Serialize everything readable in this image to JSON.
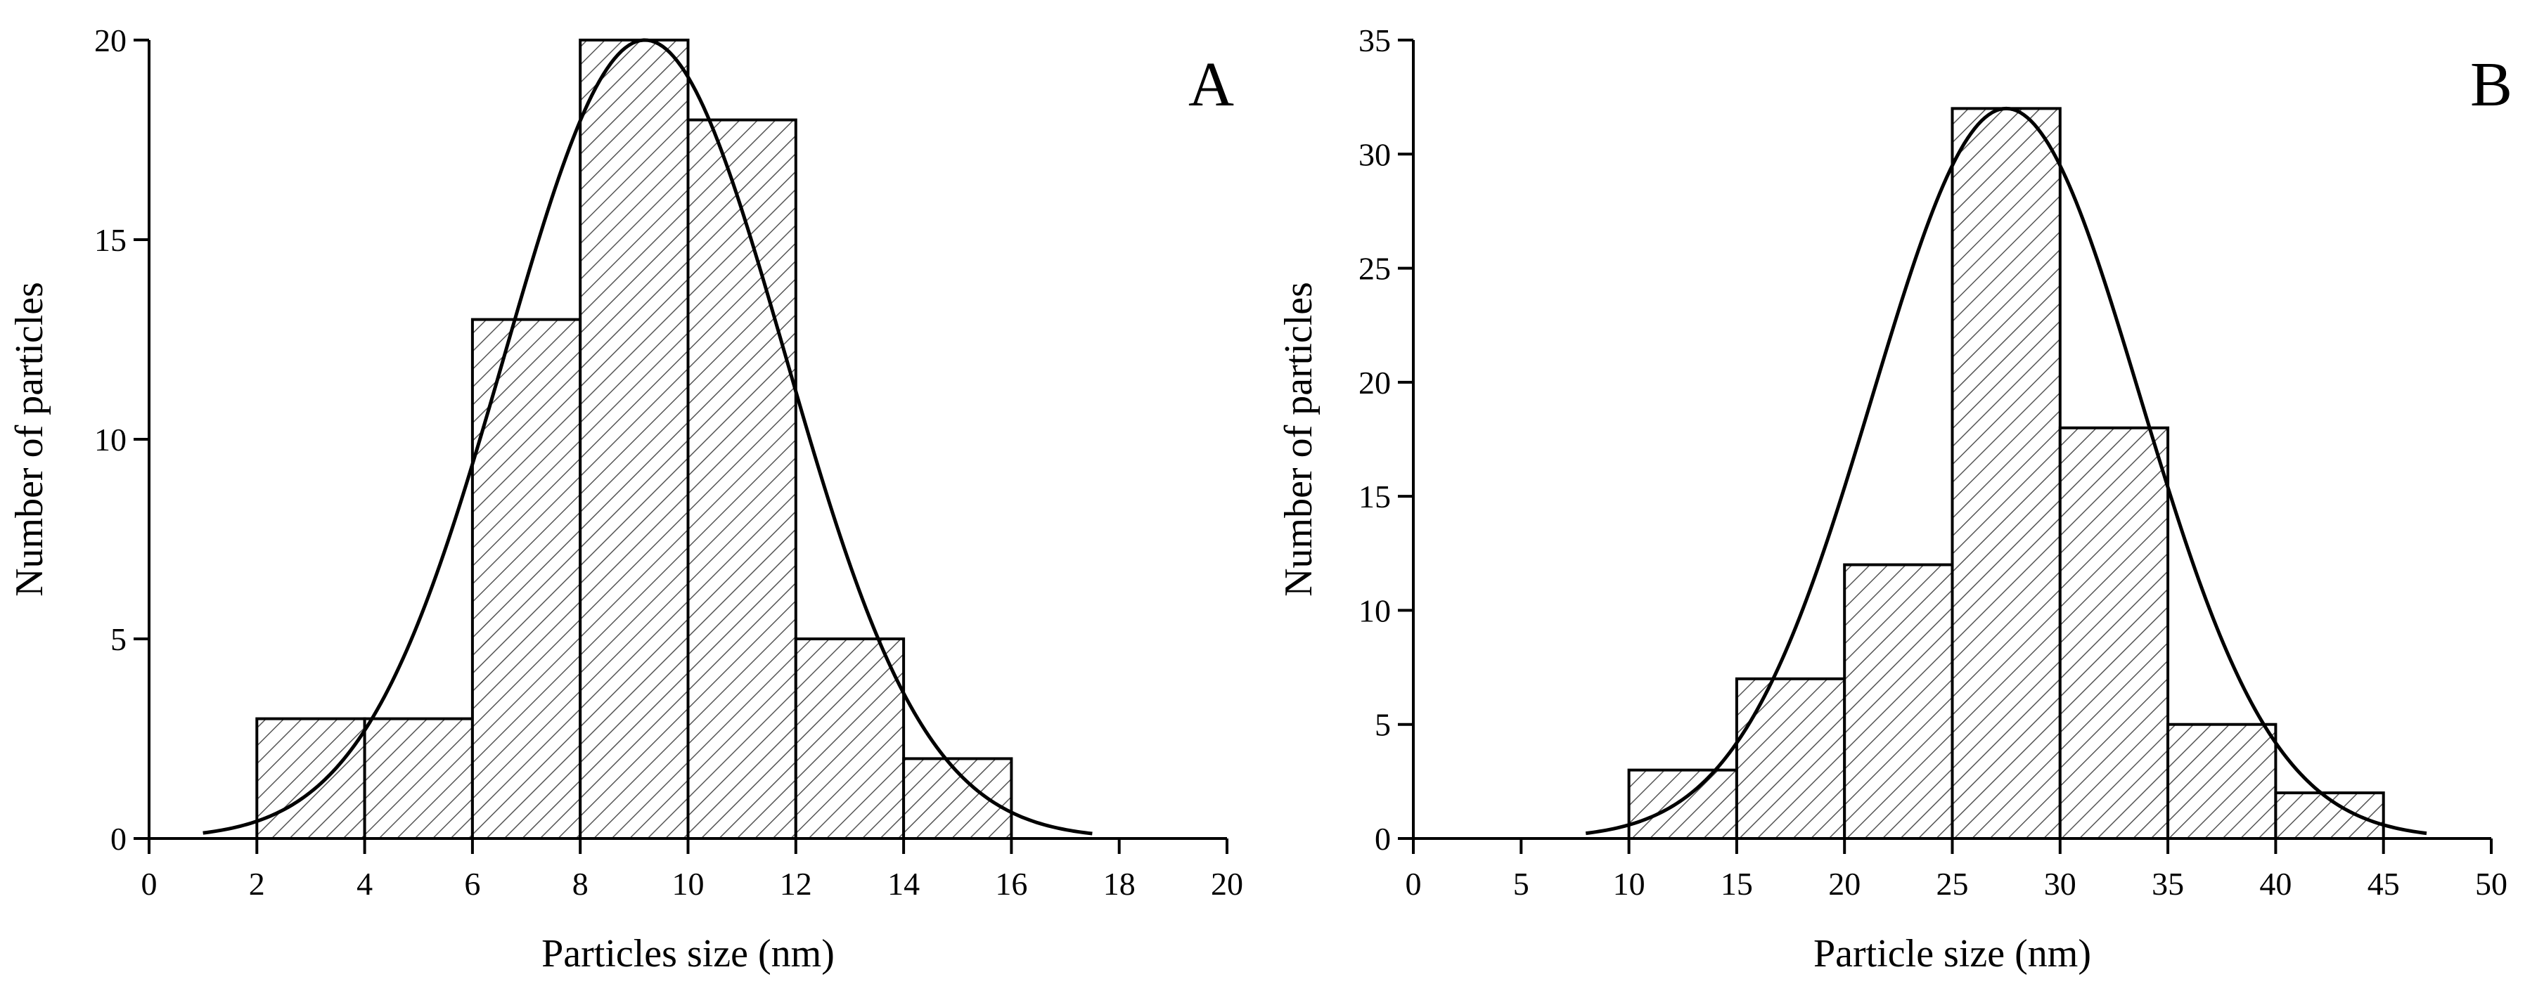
{
  "chart_data": [
    {
      "type": "bar",
      "panel_label": "A",
      "xlabel": "Particles size (nm)",
      "ylabel": "Number of particles",
      "xlim": [
        0,
        20
      ],
      "ylim": [
        0,
        20
      ],
      "xticks": [
        "0",
        "2",
        "4",
        "6",
        "8",
        "10",
        "12",
        "14",
        "16",
        "18",
        "20"
      ],
      "yticks": [
        "0",
        "5",
        "10",
        "15",
        "20"
      ],
      "bin_width": 2,
      "bin_starts": [
        2,
        4,
        6,
        8,
        10,
        12,
        14
      ],
      "values": [
        3,
        3,
        13,
        20,
        18,
        5,
        2
      ],
      "fit": {
        "type": "gaussian",
        "mean": 9.2,
        "sigma": 2.6,
        "peak": 20,
        "x_range": [
          1,
          17.5
        ]
      },
      "colors": {
        "bar_fill": "#ffffff",
        "hatch": "#555555",
        "line": "#000000"
      }
    },
    {
      "type": "bar",
      "panel_label": "B",
      "xlabel": "Particle size (nm)",
      "ylabel": "Number of particles",
      "xlim": [
        0,
        50
      ],
      "ylim": [
        0,
        35
      ],
      "xticks": [
        "0",
        "5",
        "10",
        "15",
        "20",
        "25",
        "30",
        "35",
        "40",
        "45",
        "50"
      ],
      "yticks": [
        "0",
        "5",
        "10",
        "15",
        "20",
        "25",
        "30",
        "35"
      ],
      "bin_width": 5,
      "bin_starts": [
        10,
        15,
        20,
        25,
        30,
        35,
        40
      ],
      "values": [
        3,
        7,
        12,
        32,
        18,
        5,
        2
      ],
      "fit": {
        "type": "gaussian",
        "mean": 27.5,
        "sigma": 6.2,
        "peak": 32,
        "x_range": [
          8,
          47
        ]
      },
      "colors": {
        "bar_fill": "#ffffff",
        "hatch": "#555555",
        "line": "#000000"
      }
    }
  ]
}
